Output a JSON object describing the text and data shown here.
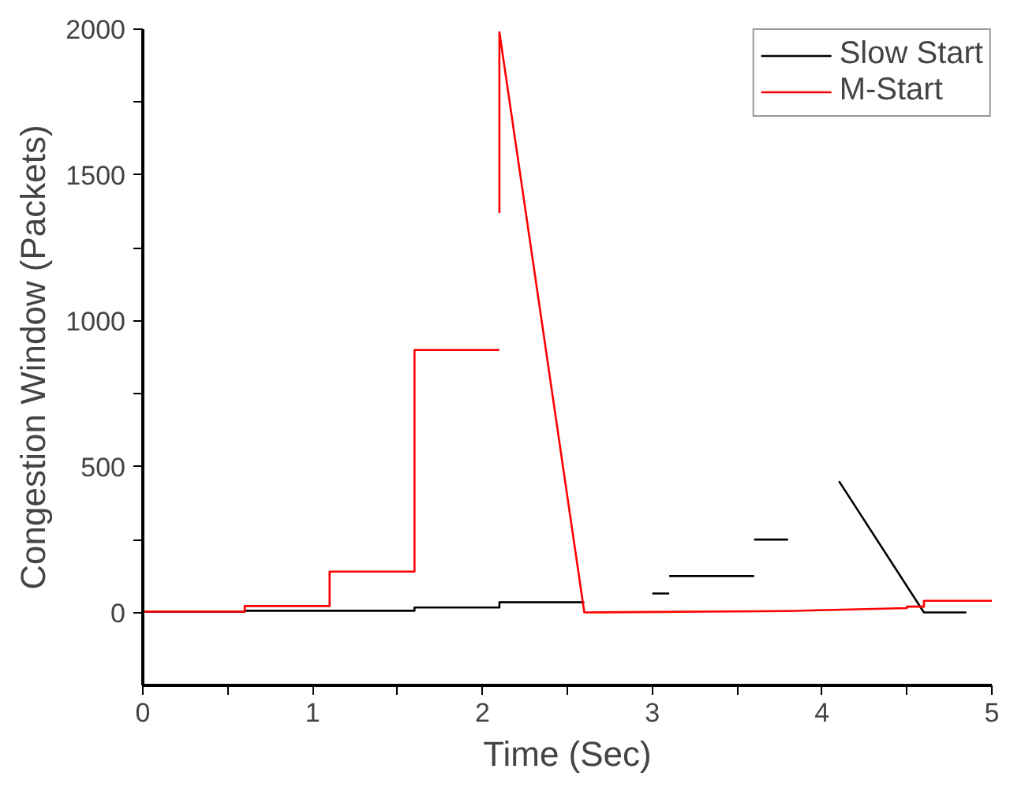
{
  "chart_data": {
    "type": "line",
    "xlabel": "Time (Sec)",
    "ylabel": "Congestion Window (Packets)",
    "xlim": [
      0,
      5
    ],
    "ylim": [
      -250,
      2000
    ],
    "xticks": [
      0,
      {
        "value": 0.5,
        "label": null
      },
      1,
      {
        "value": 1.5,
        "label": null
      },
      2,
      {
        "value": 2.5,
        "label": null
      },
      3,
      {
        "value": 3.5,
        "label": null
      },
      4,
      {
        "value": 4.5,
        "label": null
      },
      5
    ],
    "yticks": [
      0,
      {
        "value": 250,
        "label": null
      },
      500,
      {
        "value": 750,
        "label": null
      },
      1000,
      {
        "value": 1250,
        "label": null
      },
      1500,
      {
        "value": 1750,
        "label": null
      },
      2000
    ],
    "grid": false,
    "legend": "top right",
    "marker": "none",
    "line_style": "solid",
    "series": [
      {
        "name": "Slow Start",
        "color": "#000000",
        "x": [
          0,
          0.6,
          0.6,
          1.6,
          1.6,
          2.1,
          2.1,
          2.6,
          null,
          3.0,
          3.1,
          null,
          3.1,
          3.6,
          null,
          3.6,
          3.8,
          null,
          4.1,
          4.6,
          4.85
        ],
        "values": [
          2,
          2,
          6,
          6,
          17,
          17,
          35,
          35,
          null,
          65,
          65,
          null,
          125,
          125,
          null,
          250,
          250,
          null,
          450,
          0,
          0
        ]
      },
      {
        "name": "M-Start",
        "color": "#ff0000",
        "x": [
          0,
          0.6,
          0.6,
          1.1,
          1.1,
          1.6,
          1.6,
          2.1,
          null,
          2.1,
          2.1,
          2.6,
          3.8,
          4.5,
          4.5,
          4.6,
          4.6,
          5
        ],
        "values": [
          3,
          3,
          22,
          22,
          140,
          140,
          900,
          900,
          null,
          1370,
          1990,
          0,
          5,
          15,
          20,
          20,
          40,
          40
        ]
      }
    ]
  }
}
